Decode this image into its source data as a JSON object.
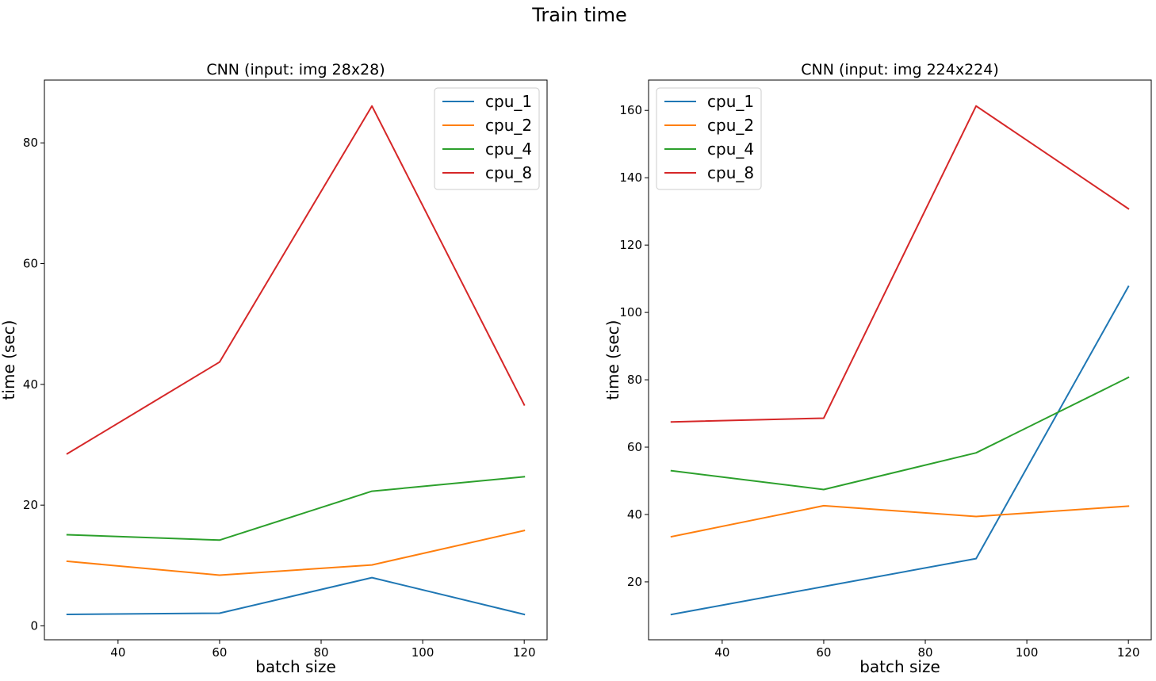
{
  "figure": {
    "suptitle": "Train time"
  },
  "chart_data": [
    {
      "type": "line",
      "title": "CNN (input: img 28x28)",
      "xlabel": "batch size",
      "ylabel": "time (sec)",
      "x": [
        30,
        60,
        90,
        120
      ],
      "xlim": [
        25.5,
        124.5
      ],
      "ylim": [
        -2.3,
        90.4
      ],
      "xticks": [
        40,
        60,
        80,
        100,
        120
      ],
      "yticks": [
        0,
        20,
        40,
        60,
        80
      ],
      "legend_position": "upper right",
      "series": [
        {
          "name": "cpu_1",
          "color": "#1f77b4",
          "values": [
            1.9,
            2.1,
            8.0,
            1.9
          ]
        },
        {
          "name": "cpu_2",
          "color": "#ff7f0e",
          "values": [
            10.7,
            8.4,
            10.1,
            15.8
          ]
        },
        {
          "name": "cpu_4",
          "color": "#2ca02c",
          "values": [
            15.1,
            14.2,
            22.3,
            24.7
          ]
        },
        {
          "name": "cpu_8",
          "color": "#d62728",
          "values": [
            28.5,
            43.7,
            86.1,
            36.6
          ]
        }
      ]
    },
    {
      "type": "line",
      "title": "CNN (input: img 224x224)",
      "xlabel": "batch size",
      "ylabel": "time (sec)",
      "x": [
        30,
        60,
        90,
        120
      ],
      "xlim": [
        25.5,
        124.5
      ],
      "ylim": [
        2.8,
        169.0
      ],
      "xticks": [
        40,
        60,
        80,
        100,
        120
      ],
      "yticks": [
        20,
        40,
        60,
        80,
        100,
        120,
        140,
        160
      ],
      "legend_position": "upper left",
      "series": [
        {
          "name": "cpu_1",
          "color": "#1f77b4",
          "values": [
            10.3,
            18.6,
            26.9,
            107.7
          ]
        },
        {
          "name": "cpu_2",
          "color": "#ff7f0e",
          "values": [
            33.4,
            42.6,
            39.4,
            42.5
          ]
        },
        {
          "name": "cpu_4",
          "color": "#2ca02c",
          "values": [
            53.0,
            47.4,
            58.3,
            80.7
          ]
        },
        {
          "name": "cpu_8",
          "color": "#d62728",
          "values": [
            67.5,
            68.6,
            161.3,
            130.8
          ]
        }
      ]
    }
  ]
}
